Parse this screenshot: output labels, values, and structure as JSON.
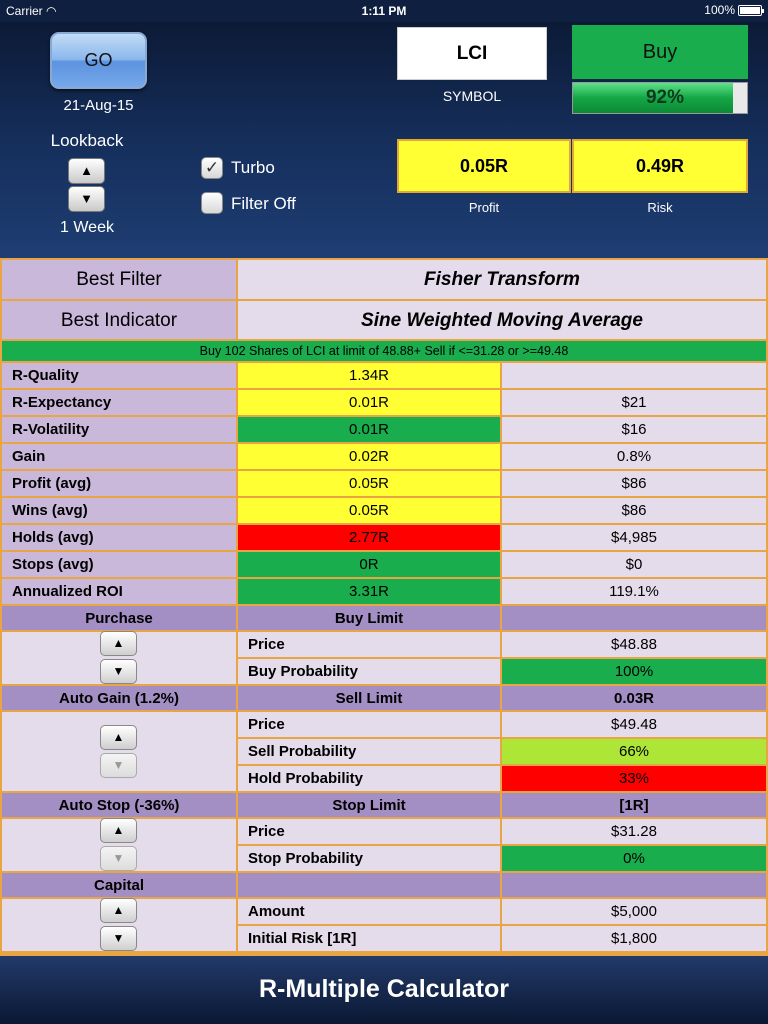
{
  "status": {
    "carrier": "Carrier",
    "time": "1:11 PM",
    "battery": "100%"
  },
  "header": {
    "go_label": "GO",
    "date": "21-Aug-15",
    "lookback_label": "Lookback",
    "lookback_value": "1 Week",
    "turbo_label": "Turbo",
    "turbo_checked": true,
    "filter_off_label": "Filter Off",
    "filter_off_checked": false,
    "symbol": "LCI",
    "symbol_label": "SYMBOL",
    "action": "Buy",
    "probability_pct": 92,
    "probability_label": "92%",
    "profit": "0.05R",
    "profit_label": "Profit",
    "risk": "0.49R",
    "risk_label": "Risk",
    "up_icon": "triangle-up-icon",
    "down_icon": "triangle-down-icon"
  },
  "best": {
    "filter_label": "Best Filter",
    "filter_value": "Fisher Transform",
    "indicator_label": "Best Indicator",
    "indicator_value": "Sine Weighted Moving Average"
  },
  "banner": "Buy 102 Shares of LCI at limit of 48.88+ Sell if <=31.28 or >=49.48",
  "metrics": [
    {
      "label": "R-Quality",
      "r": "1.34R",
      "usd": "",
      "color": "yellow"
    },
    {
      "label": "R-Expectancy",
      "r": "0.01R",
      "usd": "$21",
      "color": "yellow"
    },
    {
      "label": "R-Volatility",
      "r": "0.01R",
      "usd": "$16",
      "color": "green"
    },
    {
      "label": "Gain",
      "r": "0.02R",
      "usd": "0.8%",
      "color": "yellow"
    },
    {
      "label": "Profit (avg)",
      "r": "0.05R",
      "usd": "$86",
      "color": "yellow"
    },
    {
      "label": "Wins (avg)",
      "r": "0.05R",
      "usd": "$86",
      "color": "yellow"
    },
    {
      "label": "Holds (avg)",
      "r": "2.77R",
      "usd": "$4,985",
      "color": "red"
    },
    {
      "label": "Stops (avg)",
      "r": "0R",
      "usd": "$0",
      "color": "green"
    },
    {
      "label": "Annualized ROI",
      "r": "3.31R",
      "usd": "119.1%",
      "color": "green"
    }
  ],
  "purchase": {
    "left": "Purchase",
    "mid": "Buy Limit",
    "right": "",
    "rows": [
      {
        "label": "Price",
        "value": "$48.88",
        "color": "light"
      },
      {
        "label": "Buy Probability",
        "value": "100%",
        "color": "green"
      }
    ]
  },
  "autogain": {
    "left": "Auto Gain (1.2%)",
    "mid": "Sell Limit",
    "right": "0.03R",
    "rows": [
      {
        "label": "Price",
        "value": "$49.48",
        "color": "light"
      },
      {
        "label": "Sell Probability",
        "value": "66%",
        "color": "lightgreen"
      },
      {
        "label": "Hold Probability",
        "value": "33%",
        "color": "red"
      }
    ]
  },
  "autostop": {
    "left": "Auto Stop (-36%)",
    "mid": "Stop Limit",
    "right": "[1R]",
    "rows": [
      {
        "label": "Price",
        "value": "$31.28",
        "color": "light"
      },
      {
        "label": "Stop Probability",
        "value": "0%",
        "color": "green"
      }
    ]
  },
  "capital": {
    "left": "Capital",
    "mid": "",
    "right": "",
    "rows": [
      {
        "label": "Amount",
        "value": "$5,000",
        "color": "light"
      },
      {
        "label": "Initial Risk [1R]",
        "value": "$1,800",
        "color": "light"
      }
    ]
  },
  "footer_title": "R-Multiple Calculator",
  "colors": {
    "header_bg": "#16305e",
    "yellow": "#ffff33",
    "green": "#19ad4e",
    "red": "#ff0000",
    "lightgreen": "#aee637",
    "lavender": "#c9b8da",
    "light": "#e4dcea",
    "section": "#a38fc4",
    "grid": "#e9a444"
  }
}
